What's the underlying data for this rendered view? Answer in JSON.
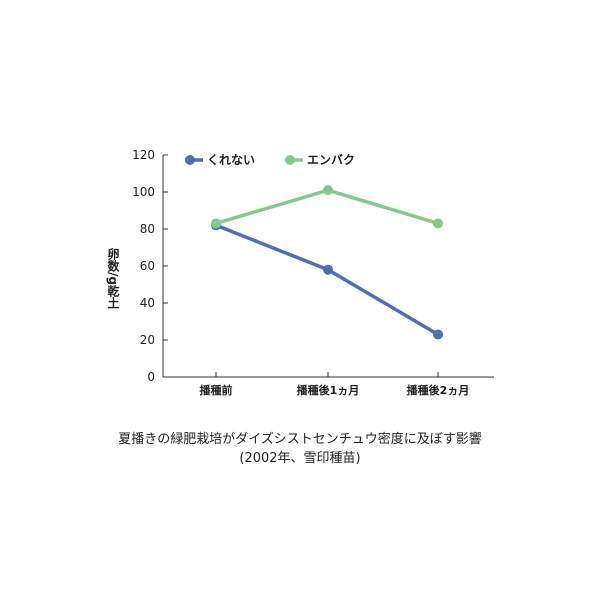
{
  "caption": {
    "line1": "夏播きの緑肥栽培がダイズシストセンチュウ密度に及ぼす影響",
    "line2": "(2002年、雪印種苗)"
  },
  "chart_data": {
    "type": "line",
    "ylabel": "卵数/g乾土",
    "categories": [
      "播種前",
      "播種後1ヵ月",
      "播種後2ヵ月"
    ],
    "ylim": [
      0,
      120
    ],
    "yticks": [
      0,
      20,
      40,
      60,
      80,
      100,
      120
    ],
    "legend_position": "top-left",
    "grid": false,
    "series": [
      {
        "name": "くれない",
        "color": "#4f6fb3",
        "values": [
          82,
          58,
          23
        ]
      },
      {
        "name": "エンバク",
        "color": "#86c98d",
        "values": [
          83,
          101,
          83
        ]
      }
    ]
  }
}
